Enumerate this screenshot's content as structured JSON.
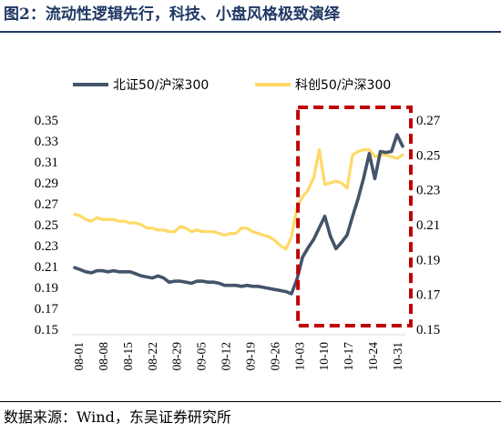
{
  "figure": {
    "title": "图2：流动性逻辑先行，科技、小盘风格极致演绎",
    "source": "数据来源：Wind，东吴证券研究所"
  },
  "colors": {
    "title": "#1f3864",
    "series1": "#44546a",
    "series2": "#ffd966",
    "highlight_box": "#c00000"
  },
  "chart_data": {
    "type": "line",
    "title": "",
    "xlabel": "",
    "ylabel": "",
    "x_ticks": [
      "08-01",
      "08-08",
      "08-15",
      "08-22",
      "08-29",
      "09-05",
      "09-12",
      "09-19",
      "09-26",
      "10-03",
      "10-10",
      "10-17",
      "10-24",
      "10-31"
    ],
    "legend_position": "top",
    "grid": false,
    "highlight": {
      "x_start": "10-02",
      "x_end": "10-31",
      "style": "dashed-box"
    },
    "left_axis": {
      "ylim": [
        0.15,
        0.35
      ],
      "ticks": [
        "0.15",
        "0.17",
        "0.19",
        "0.21",
        "0.23",
        "0.25",
        "0.27",
        "0.29",
        "0.31",
        "0.33",
        "0.35"
      ]
    },
    "right_axis": {
      "ylim": [
        0.15,
        0.27
      ],
      "ticks": [
        "0.15",
        "0.17",
        "0.19",
        "0.21",
        "0.23",
        "0.25",
        "0.27"
      ]
    },
    "series": [
      {
        "name": "北证50/沪深300",
        "axis": "left",
        "x": [
          "08-01",
          "08-02",
          "08-05",
          "08-06",
          "08-07",
          "08-08",
          "08-09",
          "08-12",
          "08-13",
          "08-14",
          "08-15",
          "08-16",
          "08-19",
          "08-20",
          "08-21",
          "08-22",
          "08-23",
          "08-26",
          "08-27",
          "08-28",
          "08-29",
          "08-30",
          "09-02",
          "09-03",
          "09-04",
          "09-05",
          "09-06",
          "09-09",
          "09-10",
          "09-11",
          "09-12",
          "09-13",
          "09-18",
          "09-19",
          "09-20",
          "09-23",
          "09-24",
          "09-25",
          "09-26",
          "09-27",
          "09-30",
          "10-08",
          "10-09",
          "10-10",
          "10-11",
          "10-14",
          "10-15",
          "10-16",
          "10-17",
          "10-18",
          "10-21",
          "10-22",
          "10-23",
          "10-24",
          "10-25",
          "10-28",
          "10-29",
          "10-30",
          "10-31",
          "11-01"
        ],
        "values": [
          0.209,
          0.207,
          0.205,
          0.204,
          0.206,
          0.206,
          0.205,
          0.206,
          0.205,
          0.205,
          0.205,
          0.203,
          0.201,
          0.2,
          0.199,
          0.201,
          0.199,
          0.195,
          0.196,
          0.196,
          0.195,
          0.194,
          0.196,
          0.196,
          0.195,
          0.195,
          0.194,
          0.192,
          0.192,
          0.192,
          0.191,
          0.192,
          0.191,
          0.191,
          0.19,
          0.189,
          0.188,
          0.187,
          0.186,
          0.184,
          0.198,
          0.219,
          0.228,
          0.236,
          0.247,
          0.258,
          0.239,
          0.227,
          0.233,
          0.24,
          0.258,
          0.275,
          0.295,
          0.318,
          0.294,
          0.32,
          0.319,
          0.32,
          0.336,
          0.325
        ]
      },
      {
        "name": "科创50/沪深300",
        "axis": "right",
        "x": [
          "08-01",
          "08-02",
          "08-05",
          "08-06",
          "08-07",
          "08-08",
          "08-09",
          "08-12",
          "08-13",
          "08-14",
          "08-15",
          "08-16",
          "08-19",
          "08-20",
          "08-21",
          "08-22",
          "08-23",
          "08-26",
          "08-27",
          "08-28",
          "08-29",
          "08-30",
          "09-02",
          "09-03",
          "09-04",
          "09-05",
          "09-06",
          "09-09",
          "09-10",
          "09-11",
          "09-12",
          "09-13",
          "09-18",
          "09-19",
          "09-20",
          "09-23",
          "09-24",
          "09-25",
          "09-26",
          "09-27",
          "09-30",
          "10-08",
          "10-09",
          "10-10",
          "10-11",
          "10-14",
          "10-15",
          "10-16",
          "10-17",
          "10-18",
          "10-21",
          "10-22",
          "10-23",
          "10-24",
          "10-25",
          "10-28",
          "10-29",
          "10-30",
          "10-31",
          "11-01"
        ],
        "values": [
          0.216,
          0.215,
          0.213,
          0.212,
          0.214,
          0.213,
          0.213,
          0.213,
          0.212,
          0.212,
          0.211,
          0.211,
          0.21,
          0.208,
          0.208,
          0.207,
          0.207,
          0.206,
          0.206,
          0.209,
          0.208,
          0.206,
          0.207,
          0.206,
          0.206,
          0.206,
          0.205,
          0.204,
          0.205,
          0.205,
          0.208,
          0.208,
          0.206,
          0.205,
          0.204,
          0.203,
          0.201,
          0.198,
          0.196,
          0.203,
          0.22,
          0.226,
          0.23,
          0.237,
          0.253,
          0.233,
          0.234,
          0.235,
          0.234,
          0.231,
          0.25,
          0.252,
          0.253,
          0.253,
          0.249,
          0.25,
          0.25,
          0.249,
          0.248,
          0.25
        ]
      }
    ]
  }
}
